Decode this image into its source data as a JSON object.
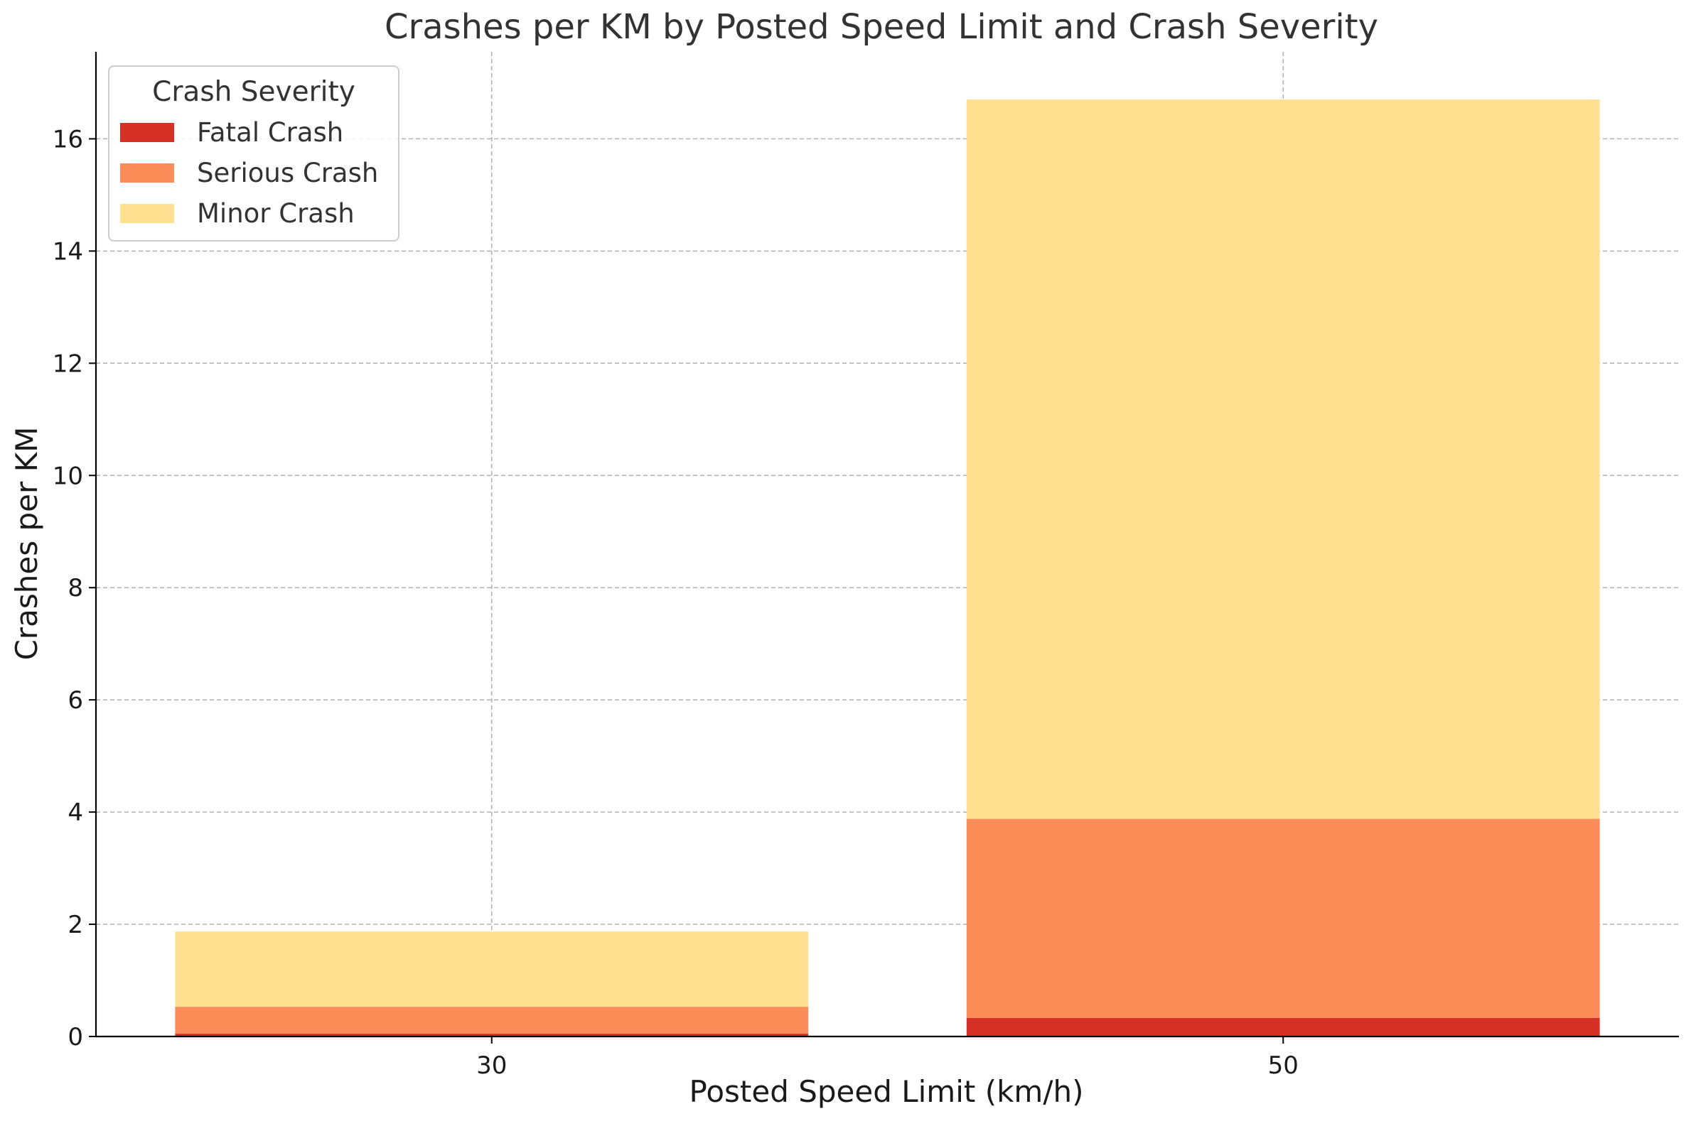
{
  "chart_data": {
    "type": "bar",
    "stacked": true,
    "title": "Crashes per KM by Posted Speed Limit and Crash Severity",
    "xlabel": "Posted Speed Limit (km/h)",
    "ylabel": "Crashes per KM",
    "categories": [
      "30",
      "50"
    ],
    "series": [
      {
        "name": "Fatal Crash",
        "values": [
          0.05,
          0.33
        ],
        "color": "#d73027"
      },
      {
        "name": "Serious Crash",
        "values": [
          0.48,
          3.55
        ],
        "color": "#fc8d59"
      },
      {
        "name": "Minor Crash",
        "values": [
          1.34,
          12.82
        ],
        "color": "#fee090"
      }
    ],
    "ylim": [
      0,
      17.55
    ],
    "yticks": [
      0,
      2,
      4,
      6,
      8,
      10,
      12,
      14,
      16
    ],
    "grid": true,
    "legend": {
      "title": "Crash Severity",
      "position": "top-left"
    }
  }
}
